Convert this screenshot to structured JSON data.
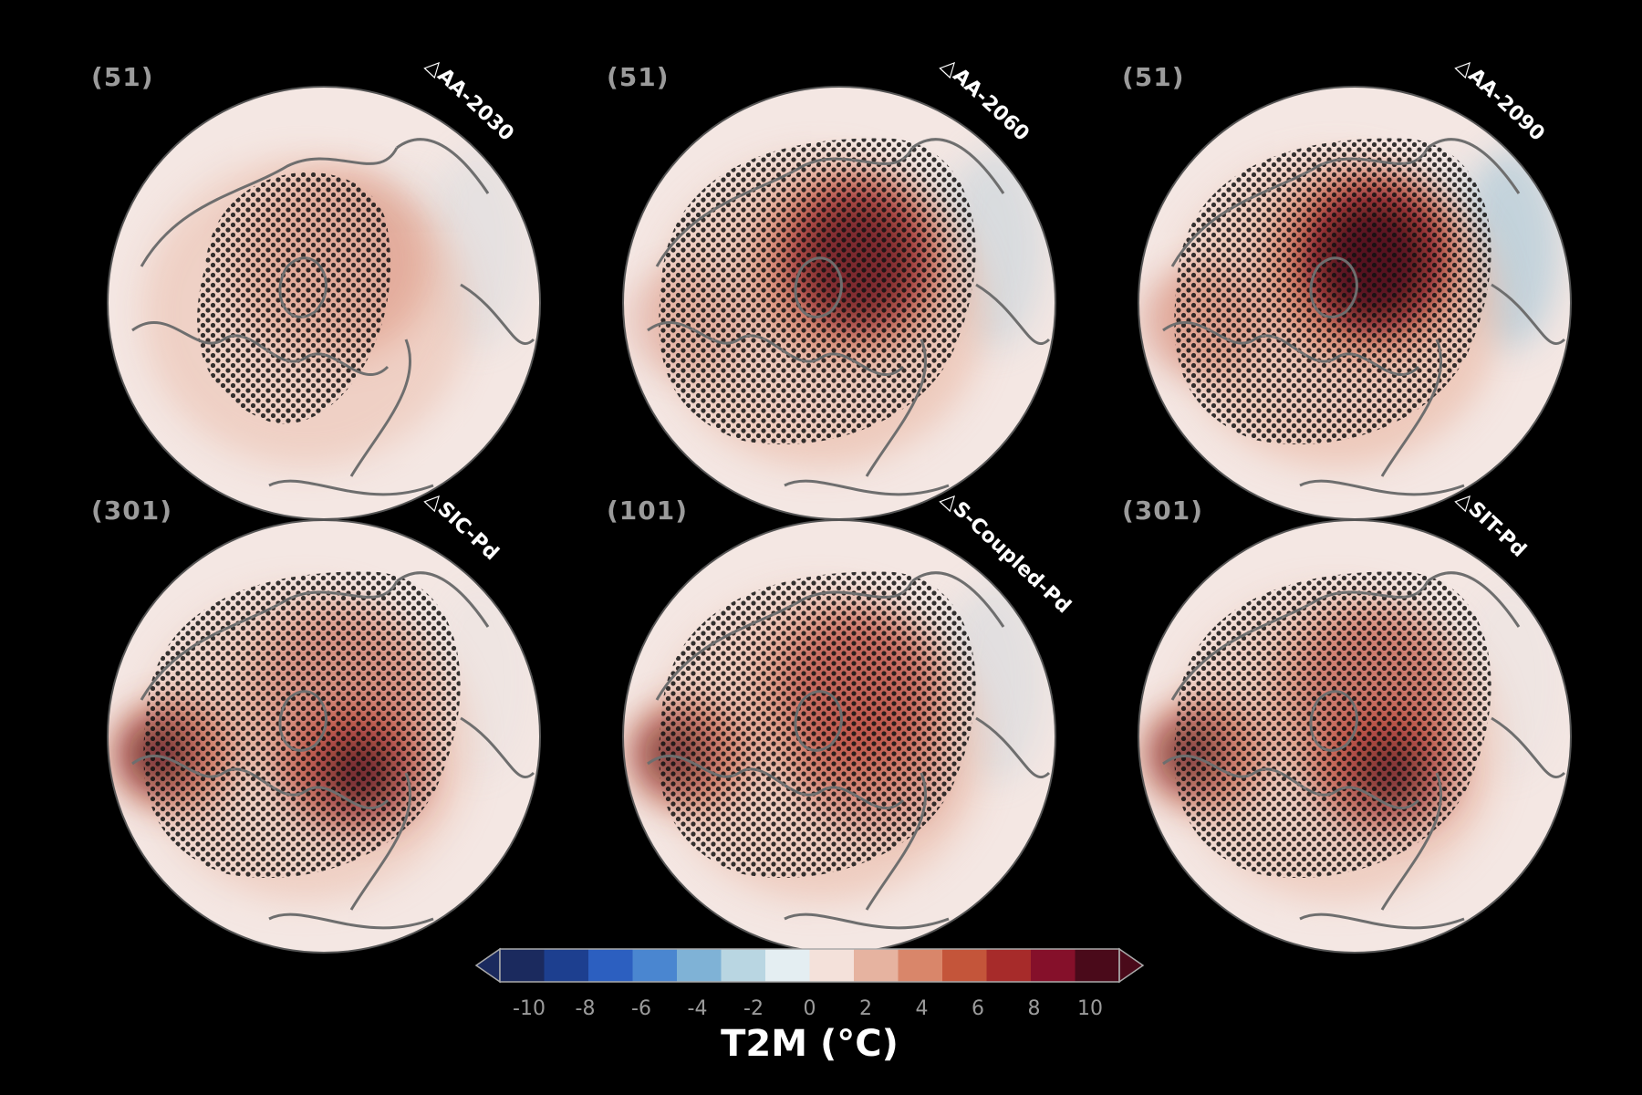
{
  "panels": [
    {
      "count": "(51)",
      "label": "△AA-2030",
      "arctic": 0.45,
      "europe": 0.0,
      "sib": 0.0,
      "cold": 0.15,
      "stipple": "arctic-small"
    },
    {
      "count": "(51)",
      "label": "△AA-2060",
      "arctic": 0.9,
      "europe": 0.3,
      "sib": 0.0,
      "cold": 0.3,
      "stipple": "wide"
    },
    {
      "count": "(51)",
      "label": "△AA-2090",
      "arctic": 1.0,
      "europe": 0.5,
      "sib": 0.0,
      "cold": 0.55,
      "stipple": "wide"
    },
    {
      "count": "(301)",
      "label": "△SIC-Pd",
      "arctic": 0.55,
      "europe": 0.9,
      "sib": 0.9,
      "cold": 0.05,
      "stipple": "wide"
    },
    {
      "count": "(101)",
      "label": "△S-Coupled-Pd",
      "arctic": 0.75,
      "europe": 0.85,
      "sib": 0.5,
      "cold": 0.2,
      "stipple": "wide"
    },
    {
      "count": "(301)",
      "label": "△SIT-Pd",
      "arctic": 0.65,
      "europe": 0.85,
      "sib": 0.85,
      "cold": 0.05,
      "stipple": "wide"
    }
  ],
  "colorbar": {
    "title": "T2M (°C)",
    "ticks": [
      "-10",
      "-8",
      "-6",
      "-4",
      "-2",
      "0",
      "2",
      "4",
      "6",
      "8",
      "10"
    ],
    "colors": [
      "#1b2a5e",
      "#1d3f8f",
      "#2c5fc0",
      "#4a86d0",
      "#7fb2d6",
      "#b9d6e2",
      "#e4eef2",
      "#f4e1da",
      "#e6b3a0",
      "#d9866a",
      "#c4553a",
      "#a72b2a",
      "#85102a",
      "#4a0a1a"
    ]
  }
}
